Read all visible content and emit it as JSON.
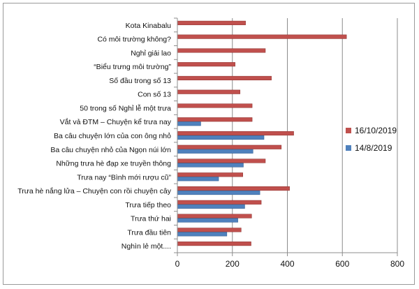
{
  "chart_data": {
    "type": "bar",
    "orientation": "horizontal",
    "categories": [
      "Kota Kinabalu",
      "Có môi trường không?",
      "Nghỉ giải lao",
      "“Biểu trưng môi trường”",
      "Số đầu trong số 13",
      "Con số 13",
      "50 trong số Nghỉ lễ một trưa",
      "Vắt vả ĐTM – Chuyện kể trưa nay",
      "Ba câu chuyện lớn của con ông nhỏ",
      "Ba câu chuyện nhỏ của Ngọn núi lớn",
      "Những trưa hè đạp xe truyền thông",
      "Trưa nay “Bình mới rượu cũ”",
      "Trưa hè nắng lửa – Chuyện con rồi chuyện cây",
      "Trưa tiếp theo",
      "Trưa thứ hai",
      "Trưa đầu tiên",
      "Nghìn lẻ một...."
    ],
    "series": [
      {
        "name": "16/10/2019",
        "color": "#c0504d",
        "values": [
          248,
          615,
          320,
          210,
          342,
          228,
          272,
          272,
          423,
          378,
          320,
          238,
          408,
          305,
          270,
          232,
          268
        ]
      },
      {
        "name": "14/8/2019",
        "color": "#4f81bd",
        "values": [
          0,
          0,
          0,
          0,
          0,
          0,
          0,
          85,
          315,
          275,
          240,
          150,
          300,
          245,
          220,
          180,
          0
        ]
      }
    ],
    "x_ticks": [
      "0",
      "200",
      "400",
      "600",
      "800"
    ],
    "xlim": [
      0,
      800
    ],
    "grid": true,
    "legend_position": "right"
  }
}
